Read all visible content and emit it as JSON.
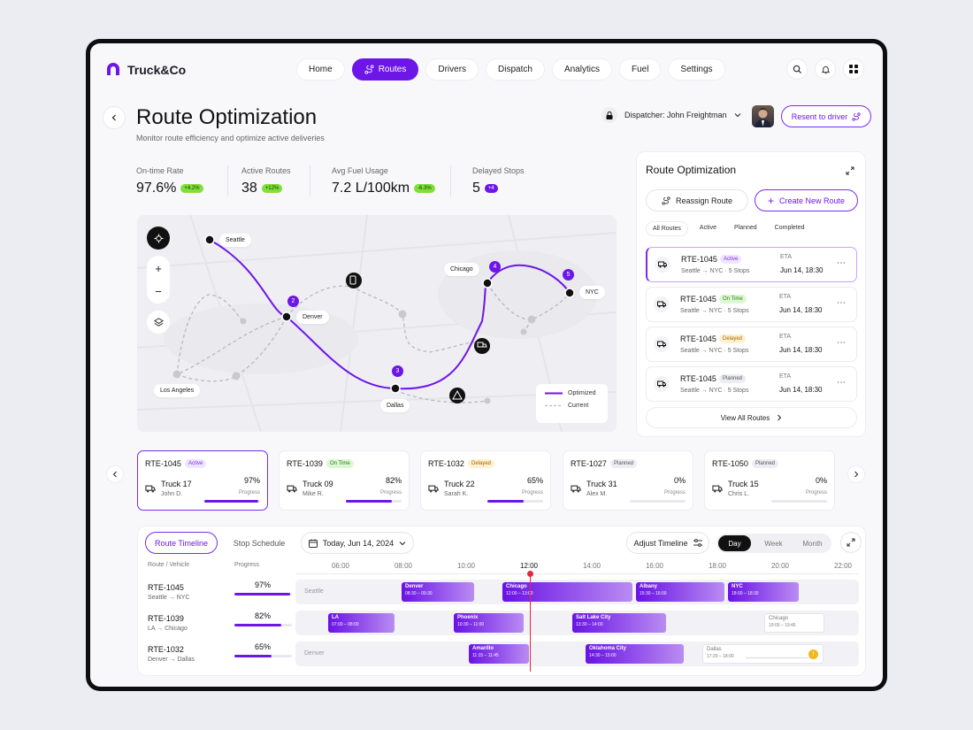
{
  "brand": {
    "name": "Truck&Co"
  },
  "nav": [
    {
      "label": "Home",
      "active": false
    },
    {
      "label": "Routes",
      "active": true
    },
    {
      "label": "Drivers",
      "active": false
    },
    {
      "label": "Dispatch",
      "active": false
    },
    {
      "label": "Analytics",
      "active": false
    },
    {
      "label": "Fuel",
      "active": false
    },
    {
      "label": "Settings",
      "active": false
    }
  ],
  "header": {
    "title": "Route Optimization",
    "subtitle": "Monitor route efficiency and optimize active deliveries",
    "dispatcher": "Dispatcher: John Freightman",
    "resent_label": "Resent to driver"
  },
  "kpis": [
    {
      "label": "On-time Rate",
      "value": "97.6%",
      "delta": "+4.2%",
      "color": "green"
    },
    {
      "label": "Active Routes",
      "value": "38",
      "delta": "+12%",
      "color": "green"
    },
    {
      "label": "Avg Fuel Usage",
      "value": "7.2 L/100km",
      "delta": "-6.3%",
      "color": "green"
    },
    {
      "label": "Delayed Stops",
      "value": "5",
      "delta": "+4",
      "color": "purple"
    }
  ],
  "map": {
    "cities": [
      "Seattle",
      "Denver",
      "Los Angeles",
      "Dallas",
      "Chicago",
      "NYC"
    ],
    "stops": [
      "2",
      "3",
      "4",
      "5"
    ],
    "legend": {
      "optimized": "Optimized",
      "current": "Current"
    }
  },
  "panel": {
    "title": "Route Optimization",
    "reassign": "Reassign Route",
    "create": "Create New Route",
    "tabs": [
      "All Routes",
      "Active",
      "Planned",
      "Completed"
    ],
    "routes": [
      {
        "id": "RTE-1045",
        "status": "Active",
        "path": "Seattle → NYC",
        "stops": "5 Stops",
        "eta_label": "ETA",
        "eta": "Jun 14, 18:30"
      },
      {
        "id": "RTE-1045",
        "status": "On Time",
        "path": "Seattle → NYC",
        "stops": "5 Stops",
        "eta_label": "ETA",
        "eta": "Jun 14, 18:30"
      },
      {
        "id": "RTE-1045",
        "status": "Delayed",
        "path": "Seattle → NYC",
        "stops": "5 Stops",
        "eta_label": "ETA",
        "eta": "Jun 14, 18:30"
      },
      {
        "id": "RTE-1045",
        "status": "Planned",
        "path": "Seattle → NYC",
        "stops": "5 Stops",
        "eta_label": "ETA",
        "eta": "Jun 14, 18:30"
      }
    ],
    "view_all": "View All Routes"
  },
  "vehicles": [
    {
      "id": "RTE-1045",
      "status": "Active",
      "truck": "Truck 17",
      "driver": "John D.",
      "progress": "97%",
      "progress_label": "Progress",
      "value": 0.97
    },
    {
      "id": "RTE-1039",
      "status": "On Time",
      "truck": "Truck 09",
      "driver": "Mike R.",
      "progress": "82%",
      "progress_label": "Progress",
      "value": 0.82
    },
    {
      "id": "RTE-1032",
      "status": "Delayed",
      "truck": "Truck 22",
      "driver": "Sarah K.",
      "progress": "65%",
      "progress_label": "Progress",
      "value": 0.65
    },
    {
      "id": "RTE-1027",
      "status": "Planned",
      "truck": "Truck 31",
      "driver": "Alex M.",
      "progress": "0%",
      "progress_label": "Progress",
      "value": 0
    },
    {
      "id": "RTE-1050",
      "status": "Planned",
      "truck": "Truck 15",
      "driver": "Chris L.",
      "progress": "0%",
      "progress_label": "Progress",
      "value": 0
    }
  ],
  "timeline": {
    "tab_active": "Route Timeline",
    "tab_other": "Stop Schedule",
    "date": "Today, Jun 14, 2024",
    "adjust": "Adjust Timeline",
    "range": [
      "Day",
      "Week",
      "Month"
    ],
    "col_route": "Route / Vehicle",
    "col_progress": "Progress",
    "hours": [
      "06:00",
      "08:00",
      "10:00",
      "12:00",
      "14:00",
      "16:00",
      "18:00",
      "20:00",
      "22:00"
    ],
    "rows": [
      {
        "id": "RTE-1045",
        "path": "Seattle → NYC",
        "progress": "97%",
        "value": 0.97,
        "origin": "Seattle",
        "segments": [
          {
            "name": "Denver",
            "time": "08:30 – 09:30"
          },
          {
            "name": "Chicago",
            "time": "12:00 – 13:00"
          },
          {
            "name": "Albany",
            "time": "15:30 – 16:00"
          },
          {
            "name": "NYC",
            "time": "18:00 – 18:30"
          }
        ]
      },
      {
        "id": "RTE-1039",
        "path": "LA → Chicago",
        "progress": "82%",
        "value": 0.82,
        "origin": "",
        "segments": [
          {
            "name": "LA",
            "time": "07:00 – 08:00"
          },
          {
            "name": "Phoenix",
            "time": "10:30 – 11:00"
          },
          {
            "name": "Salt Lake City",
            "time": "13:30 – 14:00"
          },
          {
            "name": "Chicago",
            "time": "19:00 – 19:45"
          }
        ]
      },
      {
        "id": "RTE-1032",
        "path": "Denver → Dallas",
        "progress": "65%",
        "value": 0.65,
        "origin": "Denver",
        "segments": [
          {
            "name": "Amarillo",
            "time": "11:15 – 11:45"
          },
          {
            "name": "Oklahoma City",
            "time": "14:30 – 15:00"
          },
          {
            "name": "Dallas",
            "time": "17:20 – 18:00"
          }
        ]
      }
    ]
  }
}
